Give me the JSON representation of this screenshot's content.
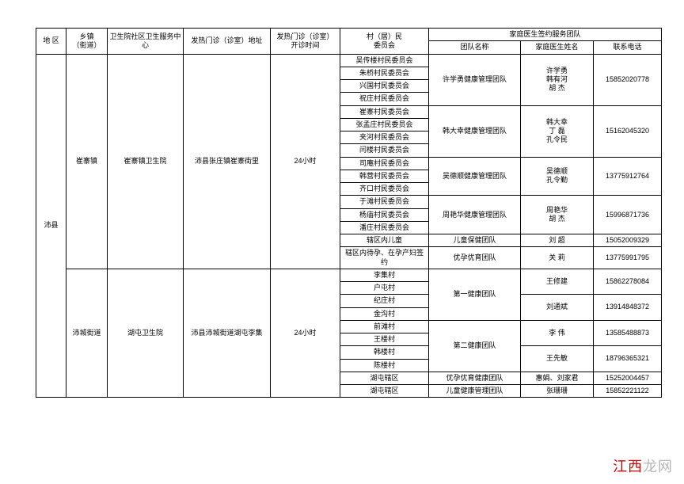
{
  "header": {
    "area": "地 区",
    "township": "乡镇\n（街道）",
    "center": "卫生院社区卫生服务中\n心",
    "clinic_addr": "发热门诊（诊室）地址",
    "clinic_time": "发热门诊（诊室）\n开诊时间",
    "village": "村（居）民\n委员会",
    "team_group": "家庭医生签约服务团队",
    "team_name": "团队名称",
    "doctor": "家庭医生姓名",
    "phone": "联系电话"
  },
  "area": "沛县",
  "towns": [
    {
      "township": "崔寨镇",
      "center": "崔寨镇卫生院",
      "clinic_addr": "沛县张庄镇崔寨街里",
      "clinic_time": "24小时"
    },
    {
      "township": "沛城街道",
      "center": "湖屯卫生院",
      "clinic_addr": "沛县沛城街道湖屯李集",
      "clinic_time": "24小时"
    }
  ],
  "rows": [
    {
      "v": "吴传楼村民委员会",
      "tn": "许学勇健康管理团队",
      "d": "许学勇\n韩有河\n胡 杰",
      "p": "15852020778"
    },
    {
      "v": "朱桥村民委员会"
    },
    {
      "v": "兴国村民委员会"
    },
    {
      "v": "祝庄村民委员会"
    },
    {
      "v": "崔寨村民委员会",
      "tn": "韩大幸健康管理团队",
      "d": "韩大幸\n丁 磊\n孔令民",
      "p": "15162045320"
    },
    {
      "v": "张孟庄村民委员会"
    },
    {
      "v": "夹河村民委员会"
    },
    {
      "v": "闫楼村民委员会"
    },
    {
      "v": "司庵村民委员会",
      "tn": "吴德顺健康管理团队",
      "d": "吴德顺\n孔令勤",
      "p": "13775912764"
    },
    {
      "v": "韩营村民委员会"
    },
    {
      "v": "齐口村民委员会"
    },
    {
      "v": "于滩村民委员会",
      "tn": "周艳华健康管理团队",
      "d": "周艳华\n胡 杰",
      "p": "15996871736"
    },
    {
      "v": "杨庙村民委员会"
    },
    {
      "v": "潘庄村民委员会"
    },
    {
      "v": "辖区内儿童",
      "tn": "儿童保健团队",
      "d": "刘 超",
      "p": "15052009329"
    },
    {
      "v": "辖区内待孕、在孕产妇签约",
      "tn": "优孕优育团队",
      "d": "关 莉",
      "p": "13775991795"
    },
    {
      "v": "李集村",
      "tn": "第一健康团队",
      "d": "王修建",
      "p": "15862278084"
    },
    {
      "v": "户屯村"
    },
    {
      "v": "纪庄村",
      "d": "刘通斌",
      "p": "13914848372"
    },
    {
      "v": "金沟村"
    },
    {
      "v": "前滩村",
      "tn": "第二健康团队",
      "d": "李 伟",
      "p": "13585488873"
    },
    {
      "v": "王楼村"
    },
    {
      "v": "韩楼村",
      "d": "王先敏",
      "p": "18796365321"
    },
    {
      "v": "陈楼村"
    },
    {
      "v": "湖屯辖区",
      "tn": "优孕优育健康团队",
      "d": "惠娟、刘家君",
      "p": "15252004457"
    },
    {
      "v": "湖屯辖区",
      "tn": "儿童健康管理团队",
      "d": "张珊珊",
      "p": "15852221122"
    }
  ],
  "watermark": {
    "a": "江西",
    "b": "龙网"
  }
}
